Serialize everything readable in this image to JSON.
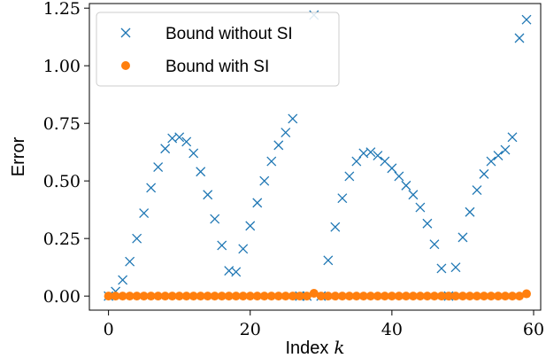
{
  "chart_data": {
    "type": "scatter",
    "title": "",
    "xlabel": "Index",
    "xlabel_var": "k",
    "ylabel": "Error",
    "xlim": [
      -2.7,
      61.0
    ],
    "ylim": [
      -0.061,
      1.27
    ],
    "xticks": [
      0,
      20,
      40,
      60
    ],
    "xtick_labels": [
      "0",
      "20",
      "40",
      "60"
    ],
    "yticks": [
      0.0,
      0.25,
      0.5,
      0.75,
      1.0,
      1.25
    ],
    "ytick_labels": [
      "0.00",
      "0.25",
      "0.50",
      "0.75",
      "1.00",
      "1.25"
    ],
    "grid": false,
    "legend_position": "top-left",
    "series": [
      {
        "name": "Bound without SI",
        "marker": "x",
        "color": "#1f77b4",
        "x": [
          0,
          1,
          2,
          3,
          4,
          5,
          6,
          7,
          8,
          9,
          10,
          11,
          12,
          13,
          14,
          15,
          16,
          17,
          18,
          19,
          20,
          21,
          22,
          23,
          24,
          25,
          26,
          27,
          28,
          29,
          30,
          31,
          32,
          33,
          34,
          35,
          36,
          37,
          38,
          39,
          40,
          41,
          42,
          43,
          44,
          45,
          46,
          47,
          48,
          49,
          50,
          51,
          52,
          53,
          54,
          55,
          56,
          57,
          58,
          59
        ],
        "y": [
          0.0,
          0.02,
          0.07,
          0.15,
          0.25,
          0.36,
          0.47,
          0.56,
          0.64,
          0.685,
          0.69,
          0.67,
          0.62,
          0.54,
          0.44,
          0.335,
          0.22,
          0.11,
          0.105,
          0.205,
          0.305,
          0.405,
          0.5,
          0.585,
          0.655,
          0.71,
          0.77,
          0.0,
          0.0,
          1.22,
          0.0,
          0.155,
          0.3,
          0.425,
          0.52,
          0.585,
          0.62,
          0.625,
          0.61,
          0.585,
          0.555,
          0.52,
          0.48,
          0.44,
          0.385,
          0.315,
          0.225,
          0.12,
          0.0,
          0.125,
          0.255,
          0.365,
          0.46,
          0.53,
          0.585,
          0.61,
          0.635,
          0.69,
          1.12,
          1.2
        ]
      },
      {
        "name": "Bound with SI",
        "marker": "o",
        "color": "#ff7f0e",
        "x": [
          0,
          1,
          2,
          3,
          4,
          5,
          6,
          7,
          8,
          9,
          10,
          11,
          12,
          13,
          14,
          15,
          16,
          17,
          18,
          19,
          20,
          21,
          22,
          23,
          24,
          25,
          26,
          27,
          28,
          29,
          30,
          31,
          32,
          33,
          34,
          35,
          36,
          37,
          38,
          39,
          40,
          41,
          42,
          43,
          44,
          45,
          46,
          47,
          48,
          49,
          50,
          51,
          52,
          53,
          54,
          55,
          56,
          57,
          58,
          59
        ],
        "y": [
          0,
          0,
          0,
          0,
          0,
          0,
          0,
          0,
          0,
          0,
          0,
          0,
          0,
          0,
          0,
          0,
          0,
          0,
          0,
          0,
          0,
          0,
          0,
          0,
          0,
          0,
          0,
          0,
          0,
          0.012,
          0,
          0,
          0,
          0,
          0,
          0,
          0,
          0,
          0,
          0,
          0,
          0,
          0,
          0,
          0,
          0,
          0,
          0,
          0,
          0,
          0,
          0,
          0,
          0,
          0,
          0,
          0,
          0,
          0,
          0.01
        ]
      }
    ]
  }
}
